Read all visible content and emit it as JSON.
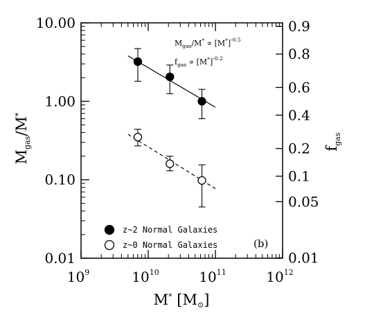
{
  "chart_data": {
    "type": "scatter",
    "x_scale": "log",
    "y_scale": "log",
    "xlim": [
      1000000000.0,
      1000000000000.0
    ],
    "ylim": [
      0.01,
      10
    ],
    "x_ticks": [
      {
        "value": 1000000000.0,
        "base": "10",
        "exp": "9"
      },
      {
        "value": 10000000000.0,
        "base": "10",
        "exp": "10"
      },
      {
        "value": 100000000000.0,
        "base": "10",
        "exp": "11"
      },
      {
        "value": 1000000000000.0,
        "base": "10",
        "exp": "12"
      }
    ],
    "y_ticks": [
      {
        "value": 10,
        "label": "10.00"
      },
      {
        "value": 1,
        "label": "1.00"
      },
      {
        "value": 0.1,
        "label": "0.10"
      },
      {
        "value": 0.01,
        "label": "0.01"
      }
    ],
    "y2_ticks": [
      {
        "value": 0.9,
        "label": "0.9"
      },
      {
        "value": 0.8,
        "label": "0.8"
      },
      {
        "value": 0.6,
        "label": "0.6"
      },
      {
        "value": 0.4,
        "label": "0.4"
      },
      {
        "value": 0.2,
        "label": "0.2"
      },
      {
        "value": 0.1,
        "label": "0.1"
      },
      {
        "value": 0.05,
        "label": "0.05"
      },
      {
        "value": 0.01,
        "label": "0.01"
      }
    ],
    "xlabel": {
      "main": "M",
      "sub": "*",
      "unit_open": " [M",
      "unit_sub": "⊙",
      "unit_close": "]"
    },
    "ylabel": {
      "main": "M",
      "sub": "gas",
      "mid": "/M",
      "sub2": "*"
    },
    "y2label": {
      "main": "f",
      "sub": "gas"
    },
    "series": [
      {
        "name": "z~2 Normal Galaxies",
        "marker": "filled",
        "points": [
          {
            "x": 7000000000.0,
            "y": 3.2,
            "ylo": 1.8,
            "yhi": 4.7
          },
          {
            "x": 21000000000.0,
            "y": 2.05,
            "ylo": 1.25,
            "yhi": 2.9
          },
          {
            "x": 63000000000.0,
            "y": 1.0,
            "ylo": 0.6,
            "yhi": 1.42
          }
        ],
        "fit": {
          "x": [
            5000000000.0,
            100000000000.0
          ],
          "y": [
            3.8,
            0.84
          ],
          "style": "solid"
        }
      },
      {
        "name": "z~0 Normal Galaxies",
        "marker": "open",
        "points": [
          {
            "x": 7000000000.0,
            "y": 0.35,
            "ylo": 0.27,
            "yhi": 0.44
          },
          {
            "x": 21000000000.0,
            "y": 0.16,
            "ylo": 0.13,
            "yhi": 0.2
          },
          {
            "x": 63000000000.0,
            "y": 0.098,
            "ylo": 0.045,
            "yhi": 0.155
          }
        ],
        "fit": {
          "x": [
            5000000000.0,
            100000000000.0
          ],
          "y": [
            0.38,
            0.077
          ],
          "style": "dashed"
        }
      }
    ],
    "annotations": [
      {
        "main": "M",
        "sub": "gas",
        "mid": "/M",
        "sub2": "*",
        "rel": " ∝ [M",
        "sub3": "*",
        "close": "]",
        "sup": "-0.5"
      },
      {
        "main": "f",
        "sub": "gas",
        "rel": " ∝ [M",
        "sub3": "*",
        "close": "]",
        "sup": "-0.2"
      }
    ],
    "panel_label": "(b)",
    "legend_position": "bottom-left",
    "grid": false
  }
}
